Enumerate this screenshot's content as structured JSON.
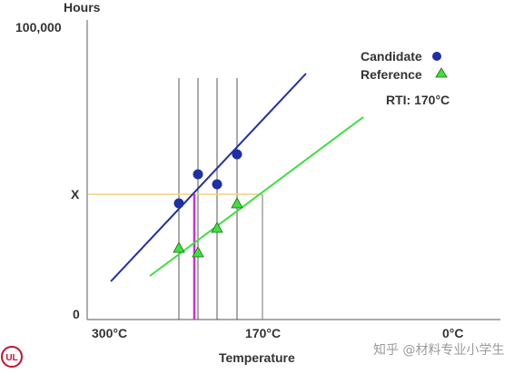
{
  "chart_data": {
    "type": "line",
    "ylabel": "Hours",
    "xlabel": "Temperature",
    "y_ticks": {
      "top": "100,000",
      "mid": "X",
      "bottom": "0"
    },
    "x_ticks": {
      "left": "300°C",
      "mid": "170°C",
      "right": "0°C"
    },
    "rti_label": "RTI: 170°C",
    "colors": {
      "candidate": "#1f2fa8",
      "reference": "#3ee03e",
      "threshold": "#f2d17a",
      "highlight": "#cc33cc",
      "guide": "#444444",
      "axis": "#777777"
    },
    "series": [
      {
        "name": "Candidate",
        "marker": "circle",
        "points": [
          [
            197,
            224
          ],
          [
            218,
            192
          ],
          [
            239,
            203
          ],
          [
            261,
            170
          ]
        ],
        "fit": [
          [
            122,
            310
          ],
          [
            337,
            81
          ]
        ]
      },
      {
        "name": "Reference",
        "marker": "triangle",
        "points": [
          [
            197,
            273
          ],
          [
            218,
            278
          ],
          [
            239,
            251
          ],
          [
            261,
            224
          ]
        ],
        "fit": [
          [
            165,
            304
          ],
          [
            400,
            129
          ]
        ]
      }
    ],
    "guide_x": [
      197,
      218,
      239,
      261
    ],
    "threshold": {
      "y": 214,
      "x_from": 97,
      "x_to": 289
    },
    "reference_drop_x": 289,
    "highlight_x": 214
  },
  "watermark": "知乎 @材料专业小学生",
  "logo_text": "UL"
}
